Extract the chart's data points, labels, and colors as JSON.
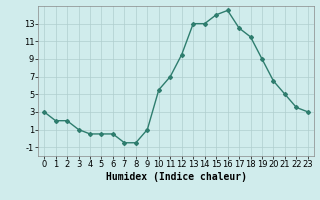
{
  "x": [
    0,
    1,
    2,
    3,
    4,
    5,
    6,
    7,
    8,
    9,
    10,
    11,
    12,
    13,
    14,
    15,
    16,
    17,
    18,
    19,
    20,
    21,
    22,
    23
  ],
  "y": [
    3,
    2,
    2,
    1,
    0.5,
    0.5,
    0.5,
    -0.5,
    -0.5,
    1,
    5.5,
    7,
    9.5,
    13,
    13,
    14,
    14.5,
    12.5,
    11.5,
    9,
    6.5,
    5,
    3.5,
    3
  ],
  "line_color": "#2e7d6e",
  "bg_color": "#d0ecec",
  "grid_color": "#b0cece",
  "xlabel": "Humidex (Indice chaleur)",
  "ylim": [
    -2,
    15
  ],
  "xlim": [
    -0.5,
    23.5
  ],
  "yticks": [
    -1,
    1,
    3,
    5,
    7,
    9,
    11,
    13
  ],
  "xticks": [
    0,
    1,
    2,
    3,
    4,
    5,
    6,
    7,
    8,
    9,
    10,
    11,
    12,
    13,
    14,
    15,
    16,
    17,
    18,
    19,
    20,
    21,
    22,
    23
  ],
  "label_fontsize": 7,
  "tick_fontsize": 6,
  "line_width": 1.0,
  "marker": "D",
  "marker_size": 2.0
}
